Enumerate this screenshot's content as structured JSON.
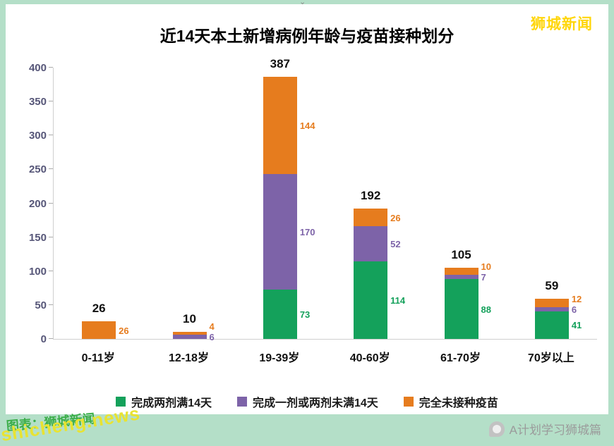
{
  "page": {
    "brand": "狮城新闻",
    "watermark_label": "A计划学习狮城篇",
    "footer_overlay_front": "shicheng.news",
    "footer_overlay_back": "图表：狮城新闻",
    "icons": {
      "collapse_chevron": "⌄"
    }
  },
  "chart_data": {
    "type": "bar",
    "stacked": true,
    "title": "近14天本土新增病例年龄与疫苗接种划分",
    "categories": [
      "0-11岁",
      "12-18岁",
      "19-39岁",
      "40-60岁",
      "61-70岁",
      "70岁以上"
    ],
    "series": [
      {
        "name": "完成两剂满14天",
        "color": "#14a15b",
        "values": [
          0,
          0,
          73,
          114,
          88,
          41
        ]
      },
      {
        "name": "完成一剂或两剂未满14天",
        "color": "#7d63a8",
        "values": [
          0,
          6,
          170,
          52,
          7,
          6
        ]
      },
      {
        "name": "完全未接种疫苗",
        "color": "#e67c1e",
        "values": [
          26,
          4,
          144,
          26,
          10,
          12
        ]
      }
    ],
    "totals": [
      26,
      10,
      387,
      192,
      105,
      59
    ],
    "xlabel": "",
    "ylabel": "",
    "ylim": [
      0,
      400
    ],
    "ytick_step": 50,
    "grid": false,
    "legend_position": "bottom"
  }
}
